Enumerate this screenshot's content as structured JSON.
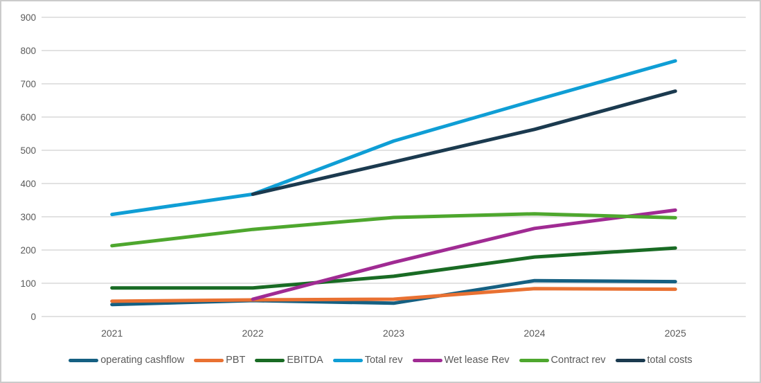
{
  "chart_data": {
    "type": "line",
    "title": "",
    "xlabel": "",
    "ylabel": "",
    "categories": [
      "2021",
      "2022",
      "2023",
      "2024",
      "2025"
    ],
    "series": [
      {
        "name": "operating cashflow",
        "color": "#156082",
        "values": [
          36,
          48,
          40,
          108,
          105
        ]
      },
      {
        "name": "PBT",
        "color": "#E97132",
        "values": [
          46,
          50,
          52,
          84,
          82
        ]
      },
      {
        "name": "EBITDA",
        "color": "#196B24",
        "values": [
          86,
          86,
          121,
          179,
          206
        ]
      },
      {
        "name": "Total rev",
        "color": "#0F9ED5",
        "values": [
          307,
          368,
          528,
          650,
          769
        ]
      },
      {
        "name": "Wet lease Rev",
        "color": "#A02B93",
        "values": [
          null,
          52,
          163,
          265,
          320
        ]
      },
      {
        "name": "Contract rev",
        "color": "#4EA72E",
        "values": [
          213,
          262,
          298,
          309,
          297
        ]
      },
      {
        "name": "total costs",
        "color": "#1B3A4F",
        "values": [
          null,
          368,
          465,
          563,
          678
        ]
      }
    ],
    "ylim": [
      0,
      900
    ],
    "ytick_interval": 100,
    "ytick_labels": [
      "0",
      "100",
      "200",
      "300",
      "400",
      "500",
      "600",
      "700",
      "800",
      "900"
    ],
    "grid": true,
    "legend_position": "bottom",
    "styles": {
      "gridline_color": "#D9D9D9",
      "axis_text_color": "#595959",
      "background_color": "#FFFFFF",
      "border_color": "#CBCBCB",
      "line_width": 5
    }
  }
}
